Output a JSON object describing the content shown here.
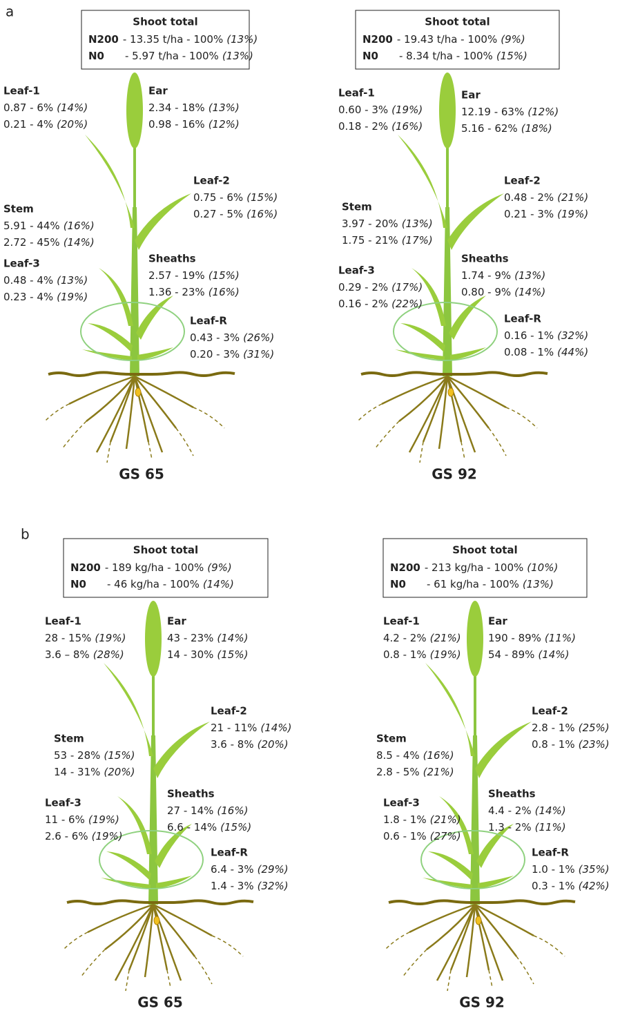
{
  "panels": [
    {
      "label": "a",
      "diagrams": [
        {
          "stage": "GS 65",
          "total": {
            "title": "Shoot total",
            "rows": [
              {
                "name": "N200",
                "value": "- 13.35 t/ha - 100%",
                "cv": "(13%)"
              },
              {
                "name": "N0",
                "value": "- 5.97 t/ha - 100%",
                "cv": "(13%)"
              }
            ]
          },
          "parts": [
            {
              "name": "Leaf-1",
              "lines": [
                {
                  "value": "0.87 - 6%",
                  "cv": "(14%)"
                },
                {
                  "value": "0.21 - 4%",
                  "cv": "(20%)"
                }
              ]
            },
            {
              "name": "Ear",
              "lines": [
                {
                  "value": "2.34 - 18%",
                  "cv": "(13%)"
                },
                {
                  "value": "0.98 - 16%",
                  "cv": "(12%)"
                }
              ]
            },
            {
              "name": "Leaf-2",
              "lines": [
                {
                  "value": "0.75 - 6%",
                  "cv": "(15%)"
                },
                {
                  "value": "0.27 - 5%",
                  "cv": "(16%)"
                }
              ]
            },
            {
              "name": "Stem",
              "lines": [
                {
                  "value": "5.91 - 44%",
                  "cv": "(16%)"
                },
                {
                  "value": "2.72 - 45%",
                  "cv": "(14%)"
                }
              ]
            },
            {
              "name": "Leaf-3",
              "lines": [
                {
                  "value": "0.48 - 4%",
                  "cv": "(13%)"
                },
                {
                  "value": "0.23 - 4%",
                  "cv": "(19%)"
                }
              ]
            },
            {
              "name": "Sheaths",
              "lines": [
                {
                  "value": "2.57 - 19%",
                  "cv": "(15%)"
                },
                {
                  "value": "1.36 - 23%",
                  "cv": "(16%)"
                }
              ]
            },
            {
              "name": "Leaf-R",
              "lines": [
                {
                  "value": "0.43 - 3%",
                  "cv": "(26%)"
                },
                {
                  "value": "0.20 - 3%",
                  "cv": "(31%)"
                }
              ]
            }
          ]
        },
        {
          "stage": "GS 92",
          "total": {
            "title": "Shoot total",
            "rows": [
              {
                "name": "N200",
                "value": "- 19.43 t/ha - 100%",
                "cv": "(9%)"
              },
              {
                "name": "N0",
                "value": "- 8.34 t/ha - 100%",
                "cv": "(15%)"
              }
            ]
          },
          "parts": [
            {
              "name": "Leaf-1",
              "lines": [
                {
                  "value": "0.60 - 3%",
                  "cv": "(19%)"
                },
                {
                  "value": "0.18 - 2%",
                  "cv": "(16%)"
                }
              ]
            },
            {
              "name": "Ear",
              "lines": [
                {
                  "value": "12.19 - 63%",
                  "cv": "(12%)"
                },
                {
                  "value": "5.16 - 62%",
                  "cv": "(18%)"
                }
              ]
            },
            {
              "name": "Leaf-2",
              "lines": [
                {
                  "value": "0.48 - 2%",
                  "cv": "(21%)"
                },
                {
                  "value": "0.21 - 3%",
                  "cv": "(19%)"
                }
              ]
            },
            {
              "name": "Stem",
              "lines": [
                {
                  "value": "3.97 - 20%",
                  "cv": "(13%)"
                },
                {
                  "value": "1.75 - 21%",
                  "cv": "(17%)"
                }
              ]
            },
            {
              "name": "Leaf-3",
              "lines": [
                {
                  "value": "0.29 - 2%",
                  "cv": "(17%)"
                },
                {
                  "value": "0.16 - 2%",
                  "cv": "(22%)"
                }
              ]
            },
            {
              "name": "Sheaths",
              "lines": [
                {
                  "value": "1.74 - 9%",
                  "cv": "(13%)"
                },
                {
                  "value": "0.80 - 9%",
                  "cv": "(14%)"
                }
              ]
            },
            {
              "name": "Leaf-R",
              "lines": [
                {
                  "value": "0.16 - 1%",
                  "cv": "(32%)"
                },
                {
                  "value": "0.08 - 1%",
                  "cv": "(44%)"
                }
              ]
            }
          ]
        }
      ]
    },
    {
      "label": "b",
      "diagrams": [
        {
          "stage": "GS 65",
          "total": {
            "title": "Shoot total",
            "rows": [
              {
                "name": "N200",
                "value": "- 189 kg/ha - 100%",
                "cv": "(9%)"
              },
              {
                "name": "N0",
                "value": "- 46 kg/ha - 100%",
                "cv": "(14%)"
              }
            ]
          },
          "parts": [
            {
              "name": "Leaf-1",
              "lines": [
                {
                  "value": "28 - 15%",
                  "cv": "(19%)"
                },
                {
                  "value": "3.6 – 8%",
                  "cv": "(28%)"
                }
              ]
            },
            {
              "name": "Ear",
              "lines": [
                {
                  "value": "43 - 23%",
                  "cv": "(14%)"
                },
                {
                  "value": "14 - 30%",
                  "cv": "(15%)"
                }
              ]
            },
            {
              "name": "Leaf-2",
              "lines": [
                {
                  "value": "21 - 11%",
                  "cv": "(14%)"
                },
                {
                  "value": "3.6 - 8%",
                  "cv": "(20%)"
                }
              ]
            },
            {
              "name": "Stem",
              "lines": [
                {
                  "value": "53 - 28%",
                  "cv": "(15%)"
                },
                {
                  "value": "14 - 31%",
                  "cv": "(20%)"
                }
              ]
            },
            {
              "name": "Leaf-3",
              "lines": [
                {
                  "value": "11 - 6%",
                  "cv": "(19%)"
                },
                {
                  "value": "2.6 - 6%",
                  "cv": "(19%)"
                }
              ]
            },
            {
              "name": "Sheaths",
              "lines": [
                {
                  "value": "27 - 14%",
                  "cv": "(16%)"
                },
                {
                  "value": "6.6 - 14%",
                  "cv": "(15%)"
                }
              ]
            },
            {
              "name": "Leaf-R",
              "lines": [
                {
                  "value": "6.4 - 3%",
                  "cv": "(29%)"
                },
                {
                  "value": "1.4 - 3%",
                  "cv": "(32%)"
                }
              ]
            }
          ]
        },
        {
          "stage": "GS 92",
          "total": {
            "title": "Shoot total",
            "rows": [
              {
                "name": "N200",
                "value": "- 213 kg/ha - 100%",
                "cv": "(10%)"
              },
              {
                "name": "N0",
                "value": "- 61 kg/ha - 100%",
                "cv": "(13%)"
              }
            ]
          },
          "parts": [
            {
              "name": "Leaf-1",
              "lines": [
                {
                  "value": "4.2 - 2%",
                  "cv": "(21%)"
                },
                {
                  "value": "0.8 - 1%",
                  "cv": "(19%)"
                }
              ]
            },
            {
              "name": "Ear",
              "lines": [
                {
                  "value": "190 - 89%",
                  "cv": "(11%)"
                },
                {
                  "value": "54 - 89%",
                  "cv": "(14%)"
                }
              ]
            },
            {
              "name": "Leaf-2",
              "lines": [
                {
                  "value": "2.8 - 1%",
                  "cv": "(25%)"
                },
                {
                  "value": "0.8 - 1%",
                  "cv": "(23%)"
                }
              ]
            },
            {
              "name": "Stem",
              "lines": [
                {
                  "value": "8.5 - 4%",
                  "cv": "(16%)"
                },
                {
                  "value": "2.8 - 5%",
                  "cv": "(21%)"
                }
              ]
            },
            {
              "name": "Leaf-3",
              "lines": [
                {
                  "value": "1.8 - 1%",
                  "cv": "(21%)"
                },
                {
                  "value": "0.6 - 1%",
                  "cv": "(27%)"
                }
              ]
            },
            {
              "name": "Sheaths",
              "lines": [
                {
                  "value": "4.4 - 2%",
                  "cv": "(14%)"
                },
                {
                  "value": "1.3 - 2%",
                  "cv": "(11%)"
                }
              ]
            },
            {
              "name": "Leaf-R",
              "lines": [
                {
                  "value": "1.0 - 1%",
                  "cv": "(35%)"
                },
                {
                  "value": "0.3 - 1%",
                  "cv": "(42%)"
                }
              ]
            }
          ]
        }
      ]
    }
  ]
}
